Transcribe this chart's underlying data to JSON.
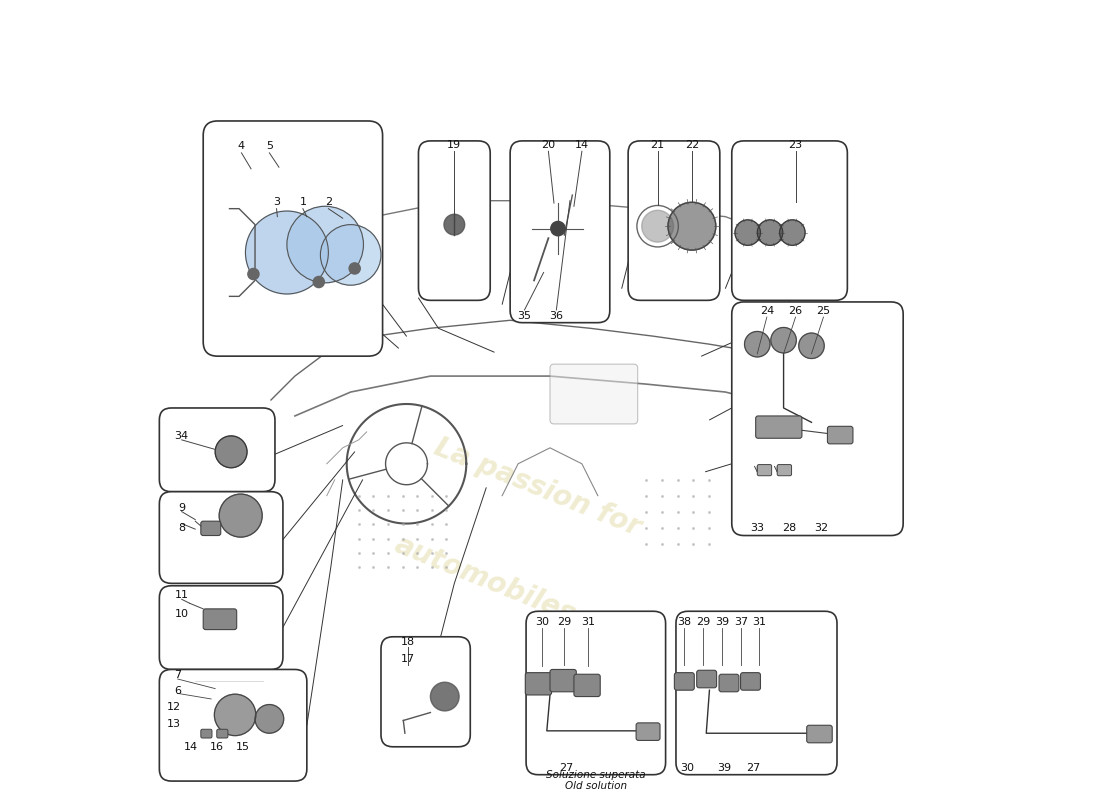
{
  "bg_color": "#ffffff",
  "box_edge": "#333333",
  "part_color_blue": "#a8c8e8",
  "watermark_color": "#d4c87a",
  "watermark_alpha": 0.35,
  "old_solution_line1": "Soluzione superata",
  "old_solution_line2": "Old solution"
}
